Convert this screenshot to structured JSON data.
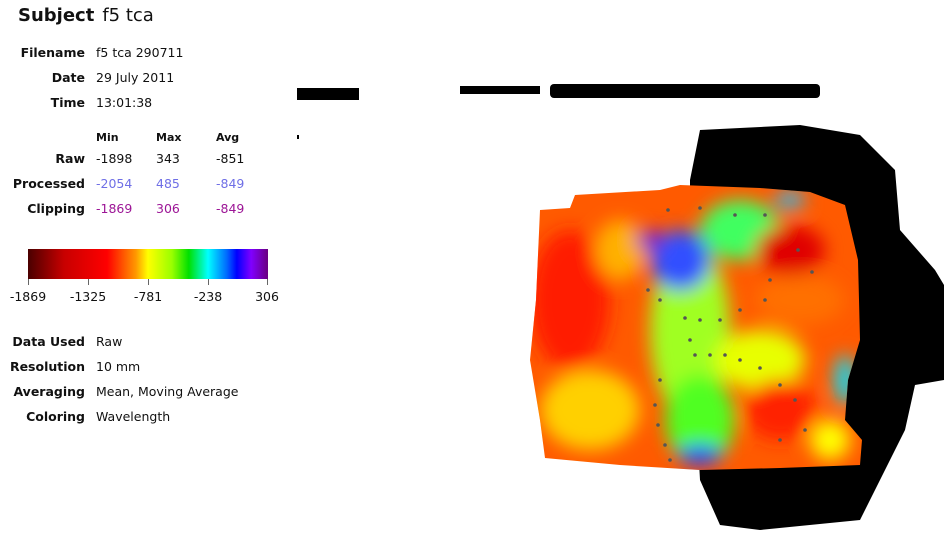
{
  "subject": {
    "label": "Subject",
    "value": "f5 tca"
  },
  "meta": [
    {
      "label": "Filename",
      "value": "f5 tca 290711"
    },
    {
      "label": "Date",
      "value": "29 July 2011"
    },
    {
      "label": "Time",
      "value": "13:01:38"
    }
  ],
  "stats": {
    "headers": [
      "Min",
      "Max",
      "Avg"
    ],
    "rows": [
      {
        "label": "Raw",
        "values": [
          "-1898",
          "343",
          "-851"
        ],
        "color": "#111111"
      },
      {
        "label": "Processed",
        "values": [
          "-2054",
          "485",
          "-849"
        ],
        "color": "#6f6fe6"
      },
      {
        "label": "Clipping",
        "values": [
          "-1869",
          "306",
          "-849"
        ],
        "color": "#9c1596"
      }
    ]
  },
  "colorbar": {
    "ticks": [
      "-1869",
      "-1325",
      "-781",
      "-238",
      "306"
    ]
  },
  "settings": [
    {
      "label": "Data Used",
      "value": "Raw"
    },
    {
      "label": "Resolution",
      "value": "10 mm"
    },
    {
      "label": "Averaging",
      "value": "Mean, Moving Average"
    },
    {
      "label": "Coloring",
      "value": "Wavelength"
    }
  ]
}
